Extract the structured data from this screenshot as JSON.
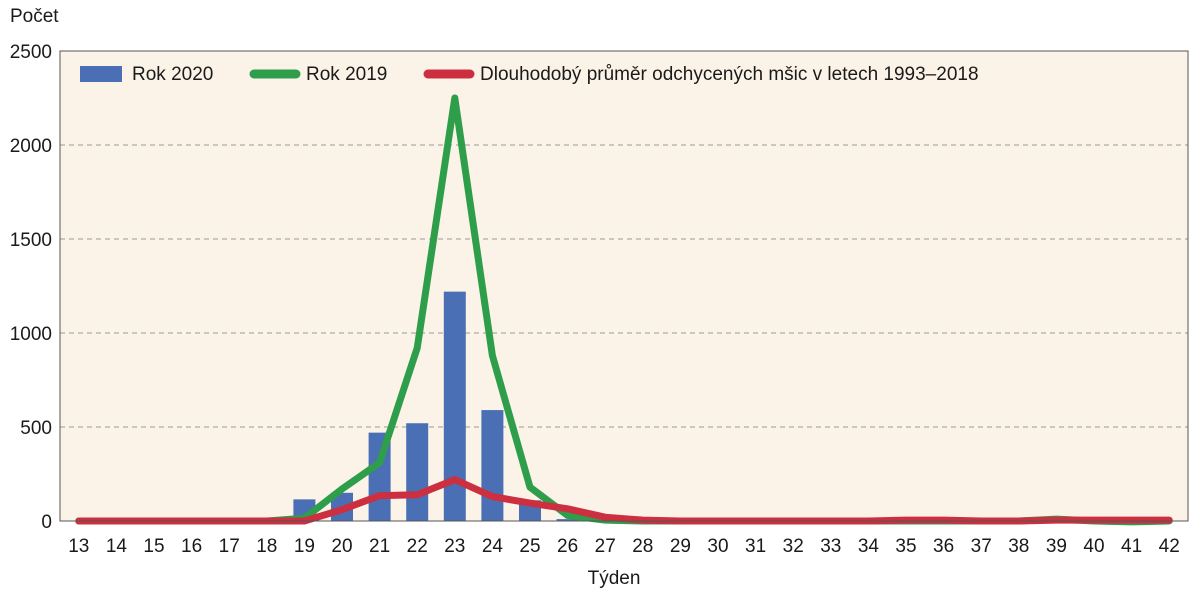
{
  "chart_data": {
    "type": "bar",
    "title": "",
    "xlabel": "Týden",
    "ylabel": "Počet",
    "categories": [
      "13",
      "14",
      "15",
      "16",
      "17",
      "18",
      "19",
      "20",
      "21",
      "22",
      "23",
      "24",
      "25",
      "26",
      "27",
      "28",
      "29",
      "30",
      "31",
      "32",
      "33",
      "34",
      "35",
      "36",
      "37",
      "38",
      "39",
      "40",
      "41",
      "42"
    ],
    "ylim": [
      0,
      2500
    ],
    "yticks": [
      "0",
      "500",
      "1000",
      "1500",
      "2000",
      "2500"
    ],
    "grid": true,
    "legend_placement": "top-left",
    "series": [
      {
        "name": "Rok 2020",
        "kind": "bar",
        "color": "#4a6fb5",
        "values": [
          0,
          0,
          0,
          0,
          0,
          0,
          115,
          150,
          470,
          520,
          1220,
          590,
          110,
          10,
          0,
          0,
          0,
          0,
          0,
          0,
          0,
          0,
          0,
          0,
          0,
          0,
          0,
          0,
          0,
          0
        ]
      },
      {
        "name": "Rok 2019",
        "kind": "line",
        "color": "#2e9e4b",
        "values": [
          0,
          0,
          0,
          0,
          0,
          0,
          15,
          170,
          310,
          920,
          2250,
          880,
          180,
          30,
          5,
          0,
          0,
          0,
          0,
          0,
          0,
          0,
          0,
          0,
          0,
          0,
          10,
          0,
          -5,
          0
        ]
      },
      {
        "name": "Dlouhodobý průměr odchycených mšic v letech 1993–2018",
        "kind": "line",
        "color": "#cc3040",
        "values": [
          0,
          0,
          0,
          0,
          0,
          0,
          0,
          60,
          135,
          140,
          220,
          130,
          95,
          65,
          20,
          5,
          0,
          0,
          0,
          0,
          0,
          0,
          5,
          5,
          0,
          0,
          5,
          5,
          5,
          5
        ]
      }
    ]
  }
}
